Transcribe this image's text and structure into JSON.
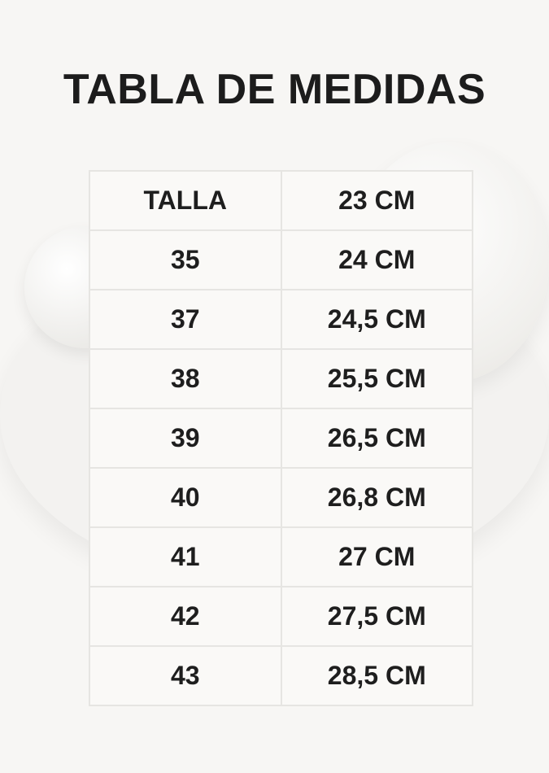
{
  "title": "TABLA DE MEDIDAS",
  "table": {
    "header": [
      "TALLA",
      "23 CM"
    ],
    "rows": [
      [
        "35",
        "24 CM"
      ],
      [
        "37",
        "24,5 CM"
      ],
      [
        "38",
        "25,5 CM"
      ],
      [
        "39",
        "26,5 CM"
      ],
      [
        "40",
        "26,8 CM"
      ],
      [
        "41",
        "27 CM"
      ],
      [
        "42",
        "27,5 CM"
      ],
      [
        "43",
        "28,5 CM"
      ]
    ]
  }
}
